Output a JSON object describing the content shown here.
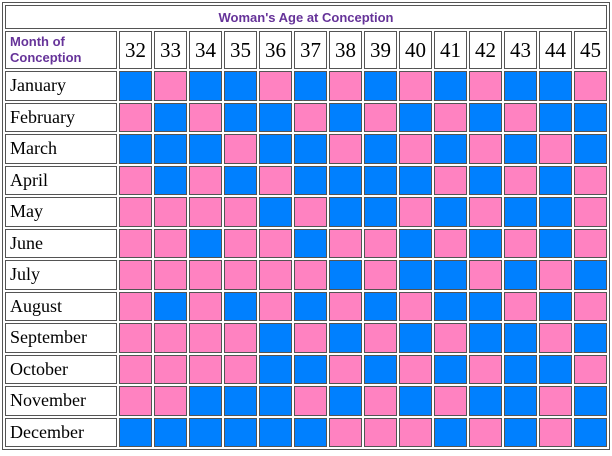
{
  "colors": {
    "boy_blue": "#0080FF",
    "girl_pink": "#FF82C1",
    "header_purple": "#663399",
    "grid_border": "#545454",
    "text_black": "#000000",
    "background": "#FFFFFF"
  },
  "chart_data": {
    "type": "heatmap",
    "title": "Woman's Age at Conception",
    "row_header": "Month of Conception",
    "columns": [
      "32",
      "33",
      "34",
      "35",
      "36",
      "37",
      "38",
      "39",
      "40",
      "41",
      "42",
      "43",
      "44",
      "45"
    ],
    "rows": [
      "January",
      "February",
      "March",
      "April",
      "May",
      "June",
      "July",
      "August",
      "September",
      "October",
      "November",
      "December"
    ],
    "values": [
      [
        "blue",
        "pink",
        "blue",
        "blue",
        "pink",
        "blue",
        "pink",
        "blue",
        "pink",
        "blue",
        "pink",
        "blue",
        "blue",
        "pink"
      ],
      [
        "pink",
        "blue",
        "pink",
        "blue",
        "blue",
        "pink",
        "blue",
        "pink",
        "blue",
        "pink",
        "blue",
        "pink",
        "blue",
        "blue"
      ],
      [
        "blue",
        "blue",
        "blue",
        "pink",
        "blue",
        "blue",
        "pink",
        "blue",
        "pink",
        "blue",
        "pink",
        "blue",
        "pink",
        "blue"
      ],
      [
        "pink",
        "blue",
        "pink",
        "blue",
        "pink",
        "blue",
        "blue",
        "blue",
        "blue",
        "pink",
        "blue",
        "pink",
        "blue",
        "pink"
      ],
      [
        "pink",
        "pink",
        "pink",
        "pink",
        "blue",
        "pink",
        "blue",
        "blue",
        "pink",
        "blue",
        "pink",
        "blue",
        "blue",
        "pink"
      ],
      [
        "pink",
        "pink",
        "blue",
        "pink",
        "pink",
        "blue",
        "pink",
        "pink",
        "blue",
        "pink",
        "blue",
        "pink",
        "blue",
        "pink"
      ],
      [
        "pink",
        "pink",
        "pink",
        "pink",
        "pink",
        "pink",
        "blue",
        "pink",
        "blue",
        "blue",
        "pink",
        "blue",
        "pink",
        "blue"
      ],
      [
        "pink",
        "blue",
        "pink",
        "blue",
        "pink",
        "blue",
        "pink",
        "blue",
        "pink",
        "blue",
        "blue",
        "pink",
        "blue",
        "pink"
      ],
      [
        "pink",
        "pink",
        "pink",
        "pink",
        "blue",
        "pink",
        "blue",
        "pink",
        "blue",
        "pink",
        "blue",
        "blue",
        "pink",
        "blue"
      ],
      [
        "pink",
        "pink",
        "pink",
        "pink",
        "blue",
        "blue",
        "pink",
        "blue",
        "pink",
        "blue",
        "pink",
        "blue",
        "blue",
        "pink"
      ],
      [
        "pink",
        "pink",
        "blue",
        "blue",
        "blue",
        "pink",
        "blue",
        "pink",
        "blue",
        "pink",
        "blue",
        "blue",
        "pink",
        "blue"
      ],
      [
        "blue",
        "blue",
        "blue",
        "blue",
        "blue",
        "blue",
        "pink",
        "pink",
        "pink",
        "blue",
        "pink",
        "blue",
        "pink",
        "blue"
      ]
    ],
    "cell_color_map": {
      "blue": "#0080FF",
      "pink": "#FF82C1"
    },
    "legend_position": "none",
    "grid": true
  }
}
